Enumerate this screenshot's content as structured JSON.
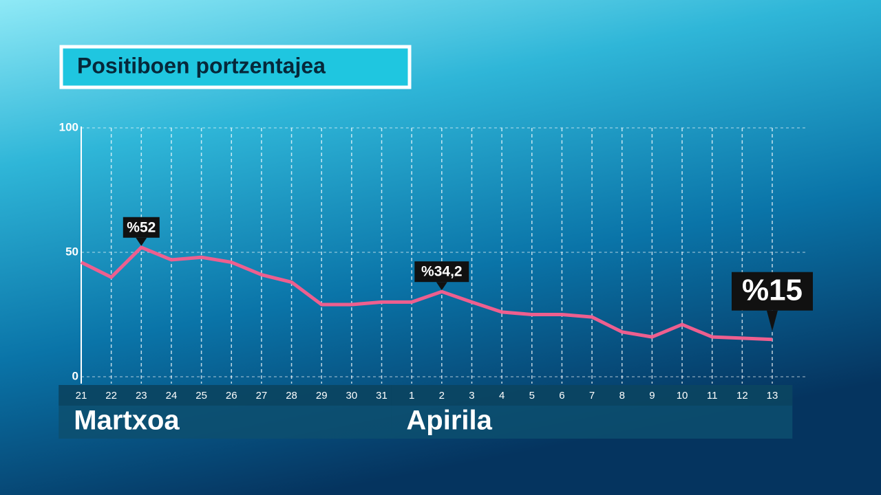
{
  "chart_data": {
    "type": "line",
    "title": "Positiboen portzentajea",
    "categories": [
      "21",
      "22",
      "23",
      "24",
      "25",
      "26",
      "27",
      "28",
      "29",
      "30",
      "31",
      "1",
      "2",
      "3",
      "4",
      "5",
      "6",
      "7",
      "8",
      "9",
      "10",
      "11",
      "12",
      "13"
    ],
    "groups": [
      {
        "name": "Martxoa",
        "count": 11
      },
      {
        "name": "Apirila",
        "count": 13
      }
    ],
    "series": [
      {
        "color": "#ee5f8f",
        "values": [
          46,
          40,
          52,
          47,
          48,
          46,
          41,
          38,
          29,
          29,
          30,
          30,
          34.2,
          30,
          26,
          25,
          25,
          24,
          18,
          16,
          21,
          16,
          15.5,
          15
        ],
        "value_labels": [
          null,
          null,
          "%52",
          null,
          null,
          null,
          null,
          null,
          null,
          null,
          null,
          null,
          "%34,2",
          null,
          null,
          null,
          null,
          null,
          null,
          null,
          null,
          null,
          null,
          "%15"
        ]
      }
    ],
    "ylim": [
      0,
      100
    ],
    "yticks": [
      0,
      50,
      100
    ],
    "grid": true
  }
}
